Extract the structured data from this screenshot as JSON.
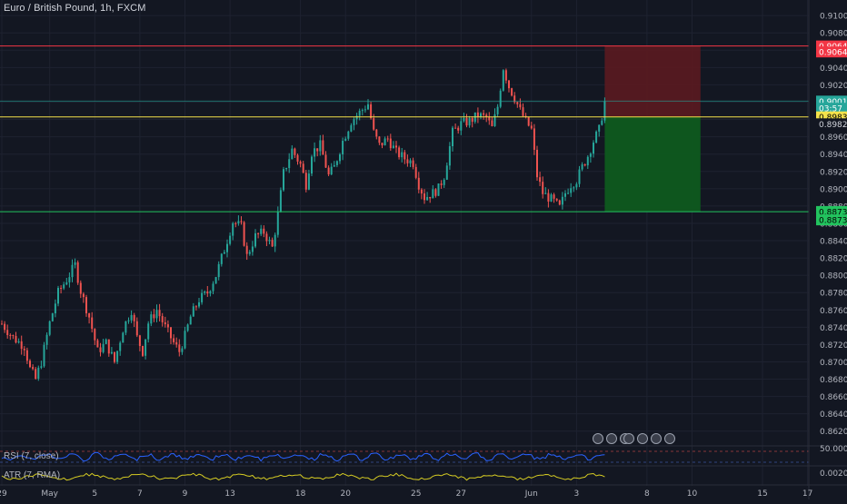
{
  "header": {
    "symbol_title": "Euro / British Pound, 1h, FXCM"
  },
  "indicators": {
    "rsi_label": "RSI (7, close)",
    "atr_label": "ATR (7, RMA)"
  },
  "colors": {
    "background": "#131722",
    "bull": "#26a69a",
    "bear": "#ef5350",
    "stop_zone": "#5b1a20",
    "target_zone": "#0e5a1f",
    "stop_line": "#f23645",
    "entry_line": "#f5e24a",
    "target_line": "#22c35e",
    "last_price": "#26a69a",
    "rsi_line": "#2962ff",
    "atr_line": "#d6cc23"
  },
  "chart_data": {
    "type": "candlestick",
    "title": "Euro / British Pound, 1h, FXCM",
    "ylim": [
      0.8604,
      0.9118
    ],
    "y_ticks": [
      "0.91000",
      "0.90800",
      "0.90600",
      "0.90400",
      "0.90200",
      "0.90000",
      "0.89800",
      "0.89600",
      "0.89400",
      "0.89200",
      "0.89000",
      "0.88800",
      "0.88600",
      "0.88400",
      "0.88200",
      "0.88000",
      "0.87800",
      "0.87600",
      "0.87400",
      "0.87200",
      "0.87000",
      "0.86800",
      "0.86600",
      "0.86400",
      "0.86200"
    ],
    "x_ticks": [
      {
        "label": "29",
        "index": 0
      },
      {
        "label": "May",
        "index": 17
      },
      {
        "label": "5",
        "index": 33
      },
      {
        "label": "7",
        "index": 49
      },
      {
        "label": "9",
        "index": 65
      },
      {
        "label": "13",
        "index": 81
      },
      {
        "label": "18",
        "index": 106
      },
      {
        "label": "20",
        "index": 122
      },
      {
        "label": "25",
        "index": 147
      },
      {
        "label": "27",
        "index": 163
      },
      {
        "label": "Jun",
        "index": 188
      },
      {
        "label": "3",
        "index": 204
      },
      {
        "label": "8",
        "index": 229
      },
      {
        "label": "10",
        "index": 245
      },
      {
        "label": "15",
        "index": 270
      },
      {
        "label": "17",
        "index": 286
      }
    ],
    "close_path": [
      [
        0,
        0.8744
      ],
      [
        4,
        0.8728
      ],
      [
        8,
        0.8718
      ],
      [
        10,
        0.8692
      ],
      [
        12,
        0.868
      ],
      [
        14,
        0.87
      ],
      [
        17,
        0.8745
      ],
      [
        20,
        0.878
      ],
      [
        23,
        0.8795
      ],
      [
        26,
        0.8812
      ],
      [
        28,
        0.8782
      ],
      [
        31,
        0.8752
      ],
      [
        34,
        0.8712
      ],
      [
        37,
        0.8722
      ],
      [
        40,
        0.87
      ],
      [
        43,
        0.8738
      ],
      [
        46,
        0.876
      ],
      [
        48,
        0.8728
      ],
      [
        50,
        0.8712
      ],
      [
        52,
        0.8745
      ],
      [
        55,
        0.876
      ],
      [
        58,
        0.874
      ],
      [
        61,
        0.8722
      ],
      [
        63,
        0.8712
      ],
      [
        65,
        0.873
      ],
      [
        67,
        0.8752
      ],
      [
        70,
        0.8772
      ],
      [
        73,
        0.878
      ],
      [
        76,
        0.88
      ],
      [
        79,
        0.883
      ],
      [
        82,
        0.8862
      ],
      [
        85,
        0.8856
      ],
      [
        87,
        0.8822
      ],
      [
        90,
        0.8845
      ],
      [
        93,
        0.885
      ],
      [
        96,
        0.8832
      ],
      [
        98,
        0.887
      ],
      [
        100,
        0.8918
      ],
      [
        103,
        0.8945
      ],
      [
        106,
        0.8928
      ],
      [
        108,
        0.8905
      ],
      [
        110,
        0.8942
      ],
      [
        113,
        0.895
      ],
      [
        116,
        0.8915
      ],
      [
        118,
        0.8925
      ],
      [
        121,
        0.8955
      ],
      [
        124,
        0.8978
      ],
      [
        127,
        0.8988
      ],
      [
        130,
        0.8998
      ],
      [
        132,
        0.8965
      ],
      [
        134,
        0.895
      ],
      [
        137,
        0.8958
      ],
      [
        140,
        0.8942
      ],
      [
        143,
        0.8935
      ],
      [
        146,
        0.893
      ],
      [
        148,
        0.8905
      ],
      [
        150,
        0.889
      ],
      [
        153,
        0.8895
      ],
      [
        155,
        0.89
      ],
      [
        157,
        0.8915
      ],
      [
        160,
        0.8965
      ],
      [
        163,
        0.8975
      ],
      [
        166,
        0.8978
      ],
      [
        169,
        0.8985
      ],
      [
        172,
        0.8982
      ],
      [
        174,
        0.897
      ],
      [
        176,
        0.8995
      ],
      [
        178,
        0.904
      ],
      [
        180,
        0.9018
      ],
      [
        182,
        0.9005
      ],
      [
        184,
        0.899
      ],
      [
        186,
        0.8978
      ],
      [
        188,
        0.8968
      ],
      [
        190,
        0.8915
      ],
      [
        192,
        0.8895
      ],
      [
        194,
        0.889
      ],
      [
        196,
        0.8885
      ],
      [
        198,
        0.8878
      ],
      [
        200,
        0.8895
      ],
      [
        202,
        0.8905
      ],
      [
        204,
        0.891
      ],
      [
        206,
        0.8925
      ],
      [
        208,
        0.8938
      ],
      [
        210,
        0.8955
      ],
      [
        212,
        0.8968
      ],
      [
        214,
        0.9
      ]
    ],
    "position": {
      "start_index": 214,
      "end_index": 248,
      "stop": 0.90649,
      "entry": 0.8983,
      "target": 0.88735,
      "last": 0.90012,
      "countdown": "03:57"
    },
    "price_labels": [
      {
        "text": "0.90649",
        "price": 0.90649,
        "kind": "stop"
      },
      {
        "text": "0.90649",
        "price": 0.9058,
        "kind": "stop"
      },
      {
        "text": "0.90012",
        "price": 0.90012,
        "kind": "last"
      },
      {
        "text": "03:57",
        "price": 0.8993,
        "kind": "last"
      },
      {
        "text": "0.89830",
        "price": 0.8983,
        "kind": "entry"
      },
      {
        "text": "0.89829",
        "price": 0.8975,
        "kind": "plain"
      },
      {
        "text": "0.88737",
        "price": 0.88737,
        "kind": "target"
      },
      {
        "text": "0.88735",
        "price": 0.8864,
        "kind": "target"
      }
    ],
    "rsi": {
      "axis_label": "50.0000"
    },
    "atr": {
      "axis_label": "0.00200"
    }
  }
}
